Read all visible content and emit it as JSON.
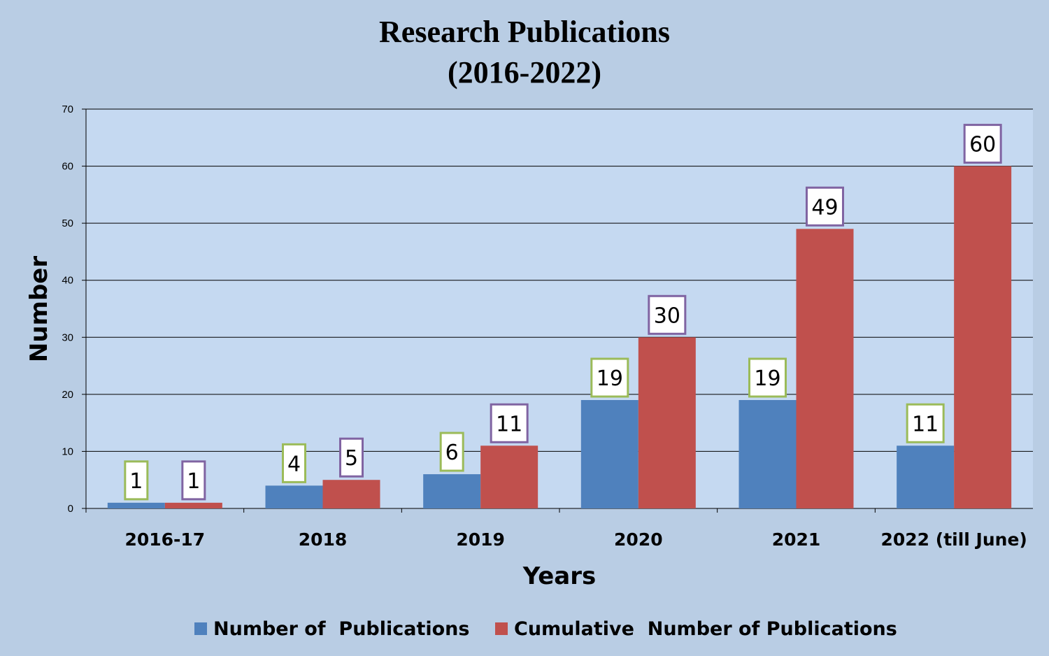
{
  "chart_data": {
    "type": "bar",
    "title": "Research Publications",
    "subtitle": "(2016-2022)",
    "xlabel": "Years",
    "ylabel": "Number",
    "ylim": [
      0,
      70
    ],
    "yticks": [
      0,
      10,
      20,
      30,
      40,
      50,
      60,
      70
    ],
    "grid": true,
    "legend_position": "bottom",
    "categories": [
      "2016-17",
      "2018",
      "2019",
      "2020",
      "2021",
      "2022 (till June)"
    ],
    "series": [
      {
        "name": "Number of  Publications",
        "values": [
          1,
          4,
          6,
          19,
          19,
          11
        ],
        "color": "#4f81bd",
        "label_border": "#9bbb59"
      },
      {
        "name": "Cumulative  Number of Publications",
        "values": [
          1,
          5,
          11,
          30,
          49,
          60
        ],
        "color": "#c0504d",
        "label_border": "#8064a2"
      }
    ]
  },
  "colors": {
    "background": "#b9cde4",
    "plot_area": "#c5d9f1",
    "gridline": "#000000"
  }
}
